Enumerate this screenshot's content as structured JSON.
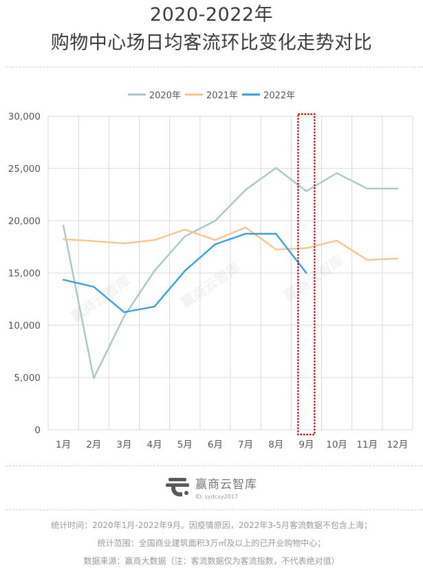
{
  "header": {
    "title_line1": "2020-2022年",
    "title_line2": "购物中心场日均客流环比变化走势对比"
  },
  "chart_data": {
    "type": "line",
    "title": "2020-2022年 购物中心场日均客流环比变化走势对比",
    "xlabel": "",
    "ylabel": "",
    "categories": [
      "1月",
      "2月",
      "3月",
      "4月",
      "5月",
      "6月",
      "7月",
      "8月",
      "9月",
      "10月",
      "11月",
      "12月"
    ],
    "ylim": [
      0,
      30000
    ],
    "yticks": [
      0,
      5000,
      10000,
      15000,
      20000,
      25000,
      30000
    ],
    "ytick_labels": [
      "0",
      "5,000",
      "10,000",
      "15,000",
      "20,000",
      "25,000",
      "30,000"
    ],
    "grid": true,
    "legend_position": "top-center",
    "series": [
      {
        "name": "2020年",
        "color": "#a9c9c9",
        "values": [
          19550,
          4930,
          10850,
          15200,
          18500,
          20000,
          22950,
          25050,
          22830,
          24550,
          23080,
          23080
        ]
      },
      {
        "name": "2021年",
        "color": "#f6c68e",
        "values": [
          18230,
          18050,
          17830,
          18150,
          19150,
          18150,
          19350,
          17250,
          17370,
          18100,
          16250,
          16380
        ]
      },
      {
        "name": "2022年",
        "color": "#3a9fdc",
        "values": [
          14350,
          13680,
          11250,
          11780,
          15200,
          17750,
          18750,
          18750,
          15000,
          null,
          null,
          null
        ]
      }
    ],
    "annotations": [
      {
        "type": "dotted-highlight-box",
        "category": "9月",
        "color": "#b30000"
      }
    ],
    "watermark": "赢商云智库"
  },
  "brand": {
    "name": "赢商云智库",
    "id_text": "ID: sydcxy2017"
  },
  "notes": {
    "line1": "统计时间：2020年1月-2022年9月。因疫情原因，2022年3-5月客流数据不包含上海；",
    "line2": "统计范围：全国商业建筑面积3万㎡及以上的已开业购物中心；",
    "line3": "数据来源：赢商大数据（注：客流数据仅为客流指数，不代表绝对值）"
  }
}
